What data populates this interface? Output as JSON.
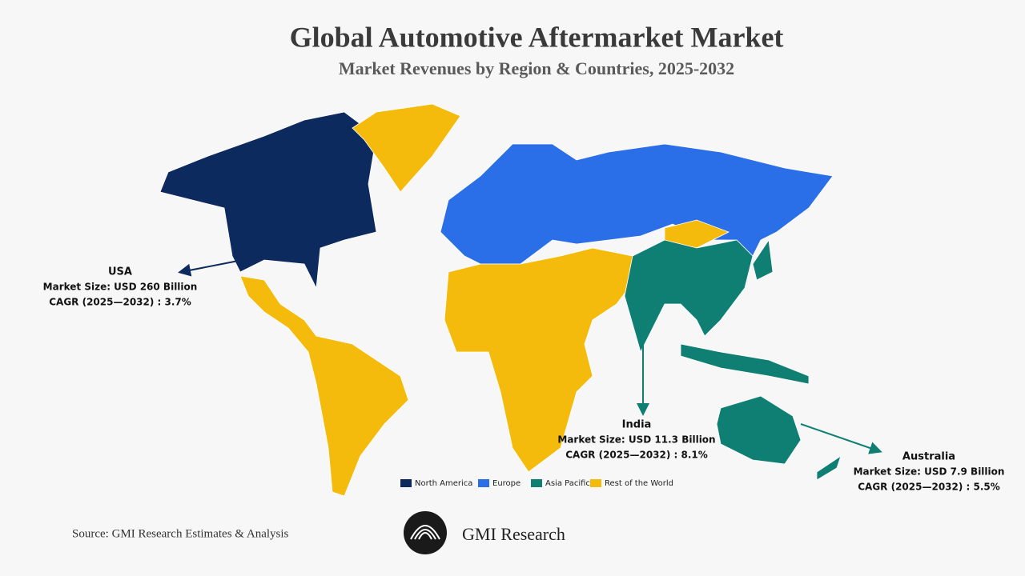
{
  "header": {
    "title": "Global Automotive Aftermarket Market",
    "subtitle": "Market Revenues by Region & Countries, 2025-2032"
  },
  "callouts": [
    {
      "name": "USA",
      "size": "Market Size: USD 260 Billion",
      "cagr": "CAGR (2025—2032) : 3.7%"
    },
    {
      "name": "India",
      "size": "Market Size: USD 11.3 Billion",
      "cagr": "CAGR (2025—2032) : 8.1%"
    },
    {
      "name": "Australia",
      "size": "Market Size: USD 7.9 Billion",
      "cagr": "CAGR (2025—2032) : 5.5%"
    }
  ],
  "legend": [
    {
      "name": "North America",
      "color": "#0d2a5e"
    },
    {
      "name": "Europe",
      "color": "#2b6fe8"
    },
    {
      "name": "Asia Pacific",
      "color": "#0e7f72"
    },
    {
      "name": "Rest of the World",
      "color": "#f5bb0c"
    }
  ],
  "source": "Source: GMI Research Estimates & Analysis",
  "brand": "GMI Research"
}
